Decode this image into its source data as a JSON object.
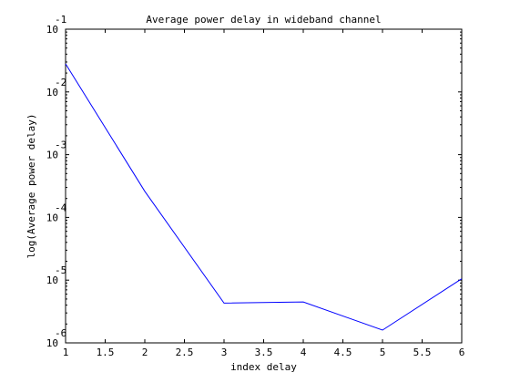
{
  "chart_data": {
    "type": "line",
    "title": "Average power delay in wideband channel",
    "xlabel": "index delay",
    "ylabel": "log(Average power delay)",
    "xlim": [
      1,
      6
    ],
    "ylim": [
      1e-06,
      0.1
    ],
    "yscale": "log",
    "xticks": [
      "1",
      "1.5",
      "2",
      "2.5",
      "3",
      "3.5",
      "4",
      "4.5",
      "5",
      "5.5",
      "6"
    ],
    "yticks": [
      {
        "base": "10",
        "exp": "-1",
        "value": 0.1
      },
      {
        "base": "10",
        "exp": "-2",
        "value": 0.01
      },
      {
        "base": "10",
        "exp": "-3",
        "value": 0.001
      },
      {
        "base": "10",
        "exp": "-4",
        "value": 0.0001
      },
      {
        "base": "10",
        "exp": "-5",
        "value": 1e-05
      },
      {
        "base": "10",
        "exp": "-6",
        "value": 1e-06
      }
    ],
    "grid": false,
    "series": [
      {
        "x": [
          1,
          2,
          3,
          4,
          5,
          6
        ],
        "y": [
          0.028,
          0.00026,
          4.3e-06,
          4.5e-06,
          1.6e-06,
          1.05e-05
        ],
        "color": "#0000ff"
      }
    ]
  }
}
